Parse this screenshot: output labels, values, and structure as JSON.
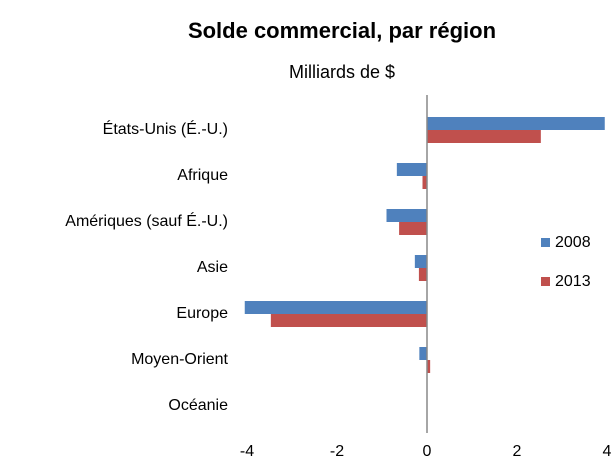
{
  "chart_data": {
    "type": "hbar",
    "title": "Solde commercial, par région",
    "subtitle": "Milliards de $",
    "categories": [
      "États-Unis (É.-U.)",
      "Afrique",
      "Amériques (sauf É.-U.)",
      "Asie",
      "Europe",
      "Moyen-Orient",
      "Océanie"
    ],
    "series": [
      {
        "name": "2008",
        "color": "#4f81bd",
        "values": [
          3.95,
          -0.67,
          -0.9,
          -0.27,
          -4.05,
          -0.17,
          0
        ]
      },
      {
        "name": "2013",
        "color": "#c0504d",
        "values": [
          2.53,
          -0.1,
          -0.62,
          -0.18,
          -3.47,
          0.07,
          0
        ]
      }
    ],
    "xlim": [
      -4,
      4
    ],
    "xticks": [
      -4,
      -2,
      0,
      2,
      4
    ],
    "legend": "right"
  }
}
